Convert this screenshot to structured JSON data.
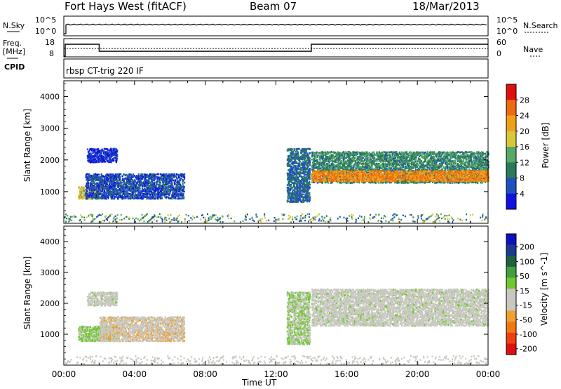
{
  "header": {
    "station": "Fort Hays West (fitACF)",
    "beam": "Beam 07",
    "date": "18/Mar/2013"
  },
  "top_panels": {
    "nsky_label": "N.Sky",
    "nsearch_label": "N.Search",
    "noise_ticks_left": [
      "10^5",
      "10^0"
    ],
    "noise_ticks_right": [
      "10^5",
      "10^0"
    ],
    "freq_label_line1": "Freq.",
    "freq_label_line2": "[MHz]",
    "freq_ticks": [
      "18",
      "8"
    ],
    "nave_label": "Nave",
    "nave_ticks": [
      "60",
      "0"
    ],
    "cpid_label": "CPID",
    "cpid_text": "rbsp CT-trig 220 IF"
  },
  "colors": {
    "power_scale": [
      "#1010e0",
      "#2050c0",
      "#2a7a5a",
      "#58a868",
      "#d8c838",
      "#f0a018",
      "#f06a10",
      "#e01010"
    ],
    "velocity_scale": [
      "#e01010",
      "#f04010",
      "#f07a10",
      "#f0a030",
      "#c8c8c0",
      "#c8c8c0",
      "#70c830",
      "#40a040",
      "#206040",
      "#1a3a90",
      "#1010c0"
    ]
  },
  "chart_data": [
    {
      "type": "heatmap",
      "title": "",
      "ylabel": "Slant Range [km]",
      "xlabel": "",
      "xlim": [
        "00:00",
        "24:00"
      ],
      "ylim": [
        0,
        4500
      ],
      "y_ticks": [
        "1000",
        "2000",
        "3000",
        "4000"
      ],
      "colorbar": {
        "label": "Power [dB]",
        "ticks": [
          "4",
          "8",
          "12",
          "16",
          "20",
          "24",
          "28"
        ],
        "range": [
          0,
          32
        ]
      },
      "regions": [
        {
          "t_start": 0.8,
          "t_end": 2.1,
          "range_start": 800,
          "range_end": 1200,
          "value": 18
        },
        {
          "t_start": 1.2,
          "t_end": 6.8,
          "range_start": 800,
          "range_end": 1600,
          "value": 6
        },
        {
          "t_start": 1.3,
          "t_end": 3.0,
          "range_start": 1950,
          "range_end": 2400,
          "value": 4
        },
        {
          "t_start": 12.6,
          "t_end": 13.9,
          "range_start": 700,
          "range_end": 2400,
          "value": 8
        },
        {
          "t_start": 14.0,
          "t_end": 24.0,
          "range_start": 1300,
          "range_end": 2300,
          "value": 11
        },
        {
          "t_start": 14.0,
          "t_end": 24.0,
          "range_start": 1350,
          "range_end": 1700,
          "value": 24
        }
      ]
    },
    {
      "type": "heatmap",
      "title": "",
      "ylabel": "Slant Range [km]",
      "xlabel": "Time UT",
      "xlim": [
        "00:00",
        "24:00"
      ],
      "ylim": [
        0,
        4500
      ],
      "x_ticks": [
        "00:00",
        "04:00",
        "08:00",
        "12:00",
        "16:00",
        "20:00",
        "00:00"
      ],
      "y_ticks": [
        "1000",
        "2000",
        "3000",
        "4000"
      ],
      "colorbar": {
        "label": "Velocity [m s^-1]",
        "ticks": [
          "200",
          "100",
          "50",
          "15",
          "-15",
          "-50",
          "-100",
          "-200"
        ],
        "range": [
          -250,
          250
        ]
      },
      "regions": [
        {
          "t_start": 0.8,
          "t_end": 3.0,
          "range_start": 800,
          "range_end": 1300,
          "value": 30
        },
        {
          "t_start": 2.0,
          "t_end": 6.8,
          "range_start": 800,
          "range_end": 1600,
          "value": -60
        },
        {
          "t_start": 1.3,
          "t_end": 3.0,
          "range_start": 1950,
          "range_end": 2400,
          "value": 0
        },
        {
          "t_start": 12.6,
          "t_end": 13.9,
          "range_start": 700,
          "range_end": 2400,
          "value": 20
        },
        {
          "t_start": 14.0,
          "t_end": 24.0,
          "range_start": 1300,
          "range_end": 2500,
          "value": 0
        }
      ]
    }
  ]
}
